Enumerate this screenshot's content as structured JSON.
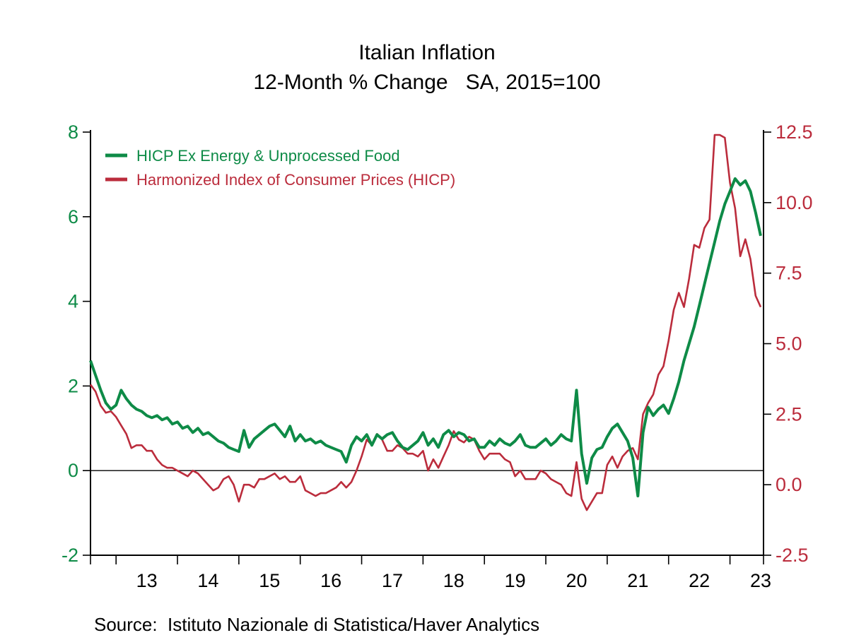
{
  "title": {
    "line1": "Italian Inflation",
    "line2": "12-Month % Change   SA, 2015=100"
  },
  "source": "Source:  Istituto Nazionale di Statistica/Haver Analytics",
  "colors": {
    "core_green": "#0e8b47",
    "headline_red": "#bb2c3c",
    "axis_black": "#000000",
    "background": "#ffffff"
  },
  "legend": {
    "items": [
      {
        "label": "HICP Ex Energy & Unprocessed Food",
        "color": "#0e8b47"
      },
      {
        "label": "Harmonized Index of Consumer Prices (HICP)",
        "color": "#bb2c3c"
      }
    ]
  },
  "chart_data": {
    "type": "line",
    "title": "Italian Inflation",
    "subtitle": "12-Month % Change   SA, 2015=100",
    "frequency": "monthly",
    "x_start": "2012-08",
    "x_end": "2023-07",
    "grid": false,
    "zero_line": true,
    "legend_position": "top-left",
    "x_axis": {
      "tick_unit": "year-start",
      "tick_labels": [
        "13",
        "14",
        "15",
        "16",
        "17",
        "18",
        "19",
        "20",
        "21",
        "22",
        "23"
      ]
    },
    "left_axis": {
      "min": -2,
      "max": 8,
      "tick_values": [
        8,
        6,
        4,
        2,
        0,
        -2
      ],
      "tick_labels": [
        "8",
        "6",
        "4",
        "2",
        "0",
        "-2"
      ],
      "color": "#0e8b47"
    },
    "right_axis": {
      "min": -2.5,
      "max": 12.5,
      "tick_values": [
        12.5,
        10.0,
        7.5,
        5.0,
        2.5,
        0.0,
        -2.5
      ],
      "tick_labels": [
        "12.5",
        "10.0",
        "7.5",
        "5.0",
        "2.5",
        "0.0",
        "-2.5"
      ],
      "color": "#bb2c3c"
    },
    "series": [
      {
        "name": "Harmonized Index of Consumer Prices (HICP)",
        "axis": "right",
        "color": "#bb2c3c",
        "line_width": 2.6,
        "values": [
          3.55,
          3.3,
          2.8,
          2.55,
          2.6,
          2.4,
          2.1,
          1.8,
          1.3,
          1.4,
          1.4,
          1.2,
          1.2,
          0.9,
          0.7,
          0.6,
          0.6,
          0.5,
          0.4,
          0.3,
          0.5,
          0.4,
          0.2,
          0.0,
          -0.2,
          -0.1,
          0.2,
          0.3,
          0.0,
          -0.6,
          0.0,
          0.0,
          -0.1,
          0.2,
          0.2,
          0.3,
          0.4,
          0.2,
          0.3,
          0.1,
          0.1,
          0.3,
          -0.2,
          -0.3,
          -0.4,
          -0.3,
          -0.3,
          -0.2,
          -0.1,
          0.1,
          -0.1,
          0.1,
          0.5,
          1.0,
          1.6,
          1.4,
          1.8,
          1.6,
          1.2,
          1.2,
          1.4,
          1.3,
          1.1,
          1.1,
          1.0,
          1.2,
          0.5,
          0.9,
          0.6,
          1.0,
          1.4,
          1.9,
          1.6,
          1.5,
          1.7,
          1.6,
          1.2,
          0.9,
          1.1,
          1.1,
          1.1,
          0.9,
          0.8,
          0.3,
          0.5,
          0.2,
          0.2,
          0.2,
          0.5,
          0.4,
          0.2,
          0.1,
          0.0,
          -0.3,
          -0.4,
          0.8,
          -0.5,
          -0.9,
          -0.6,
          -0.3,
          -0.3,
          0.7,
          1.0,
          0.6,
          1.0,
          1.2,
          1.3,
          0.9,
          2.5,
          2.9,
          3.2,
          3.9,
          4.2,
          5.1,
          6.2,
          6.8,
          6.3,
          7.3,
          8.5,
          8.4,
          9.1,
          9.4,
          12.4,
          12.4,
          12.3,
          10.7,
          9.8,
          8.1,
          8.7,
          8.0,
          6.7,
          6.3
        ]
      },
      {
        "name": "HICP Ex Energy & Unprocessed Food",
        "axis": "left",
        "color": "#0e8b47",
        "line_width": 4,
        "values": [
          2.6,
          2.25,
          1.9,
          1.6,
          1.45,
          1.55,
          1.9,
          1.7,
          1.55,
          1.45,
          1.4,
          1.3,
          1.25,
          1.3,
          1.2,
          1.25,
          1.1,
          1.15,
          1.0,
          1.05,
          0.9,
          1.0,
          0.85,
          0.9,
          0.8,
          0.7,
          0.65,
          0.55,
          0.5,
          0.45,
          0.95,
          0.55,
          0.75,
          0.85,
          0.95,
          1.05,
          1.1,
          0.95,
          0.8,
          1.05,
          0.7,
          0.85,
          0.7,
          0.75,
          0.65,
          0.7,
          0.6,
          0.55,
          0.5,
          0.45,
          0.2,
          0.6,
          0.8,
          0.7,
          0.85,
          0.6,
          0.85,
          0.75,
          0.85,
          0.9,
          0.7,
          0.55,
          0.5,
          0.6,
          0.7,
          0.9,
          0.6,
          0.75,
          0.55,
          0.85,
          0.95,
          0.8,
          0.9,
          0.85,
          0.7,
          0.75,
          0.55,
          0.55,
          0.7,
          0.6,
          0.75,
          0.65,
          0.6,
          0.7,
          0.85,
          0.6,
          0.55,
          0.55,
          0.65,
          0.75,
          0.6,
          0.7,
          0.85,
          0.75,
          0.7,
          1.9,
          0.4,
          -0.3,
          0.3,
          0.5,
          0.55,
          0.8,
          1.0,
          1.1,
          0.9,
          0.7,
          0.3,
          -0.6,
          0.9,
          1.5,
          1.3,
          1.45,
          1.55,
          1.35,
          1.7,
          2.1,
          2.6,
          3.0,
          3.4,
          3.9,
          4.4,
          4.9,
          5.4,
          5.9,
          6.3,
          6.6,
          6.9,
          6.75,
          6.85,
          6.6,
          6.1,
          5.55
        ]
      }
    ]
  }
}
